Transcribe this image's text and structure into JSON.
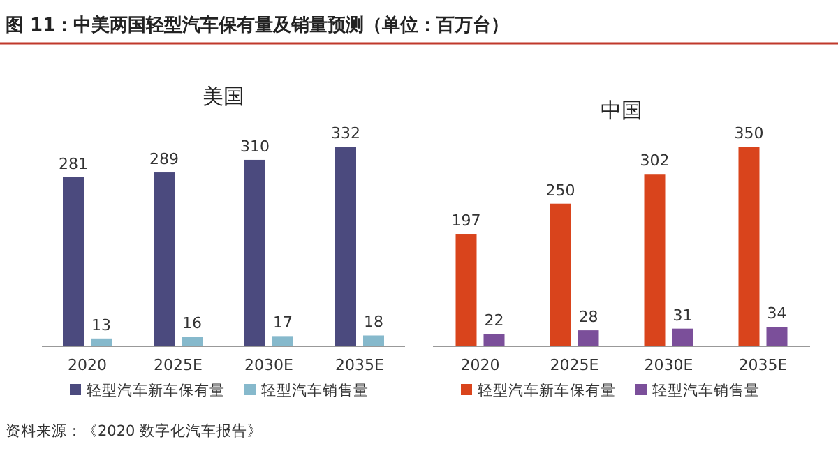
{
  "chart_data": [
    {
      "type": "bar",
      "title": "美国",
      "annotations": [
        "图 11：中美两国轻型汽车保有量及销量预测（单位：百万台）",
        "资料来源：《2020 数字化汽车报告》"
      ],
      "categories": [
        "2020",
        "2025E",
        "2030E",
        "2035E"
      ],
      "series": [
        {
          "name": "轻型汽车新车保有量",
          "color": "#4b4a7e",
          "values": [
            281,
            289,
            310,
            332
          ]
        },
        {
          "name": "轻型汽车销售量",
          "color": "#86b9cc",
          "values": [
            13,
            16,
            17,
            18
          ]
        }
      ],
      "data_labels": true,
      "legend": "bottom"
    },
    {
      "type": "bar",
      "title": "中国",
      "categories": [
        "2020",
        "2025E",
        "2030E",
        "2035E"
      ],
      "series": [
        {
          "name": "轻型汽车新车保有量",
          "color": "#d9441c",
          "values": [
            197,
            250,
            302,
            350
          ]
        },
        {
          "name": "轻型汽车销售量",
          "color": "#7b4f9a",
          "values": [
            22,
            28,
            31,
            34
          ]
        }
      ],
      "data_labels": true,
      "legend": "bottom"
    }
  ]
}
